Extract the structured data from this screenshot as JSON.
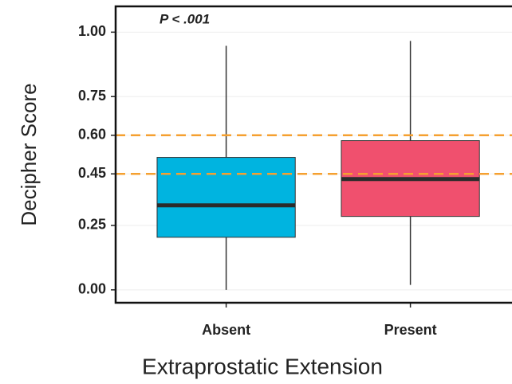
{
  "chart_data": {
    "type": "box",
    "annotation": "P < .001",
    "x_label": "Extraprostatic Extension",
    "y_label": "Decipher Score",
    "categories": [
      "Absent",
      "Present"
    ],
    "boxes": [
      {
        "color": "#00b4e0",
        "whisker_low": 0.0,
        "q1": 0.204,
        "median": 0.328,
        "q3": 0.514,
        "whisker_high": 0.947
      },
      {
        "color": "#f0506e",
        "whisker_low": 0.019,
        "q1": 0.285,
        "median": 0.43,
        "q3": 0.579,
        "whisker_high": 0.966
      }
    ],
    "ylim": [
      -0.05,
      1.1
    ],
    "yticks": [
      {
        "value": 0,
        "label": "0.00"
      },
      {
        "value": 0.25,
        "label": "0.25"
      },
      {
        "value": 0.45,
        "label": "0.45"
      },
      {
        "value": 0.6,
        "label": "0.60"
      },
      {
        "value": 0.75,
        "label": "0.75"
      },
      {
        "value": 1,
        "label": "1.00"
      }
    ],
    "reference_lines": [
      0.45,
      0.6
    ],
    "reference_color": "#f5a030",
    "grid": true
  }
}
